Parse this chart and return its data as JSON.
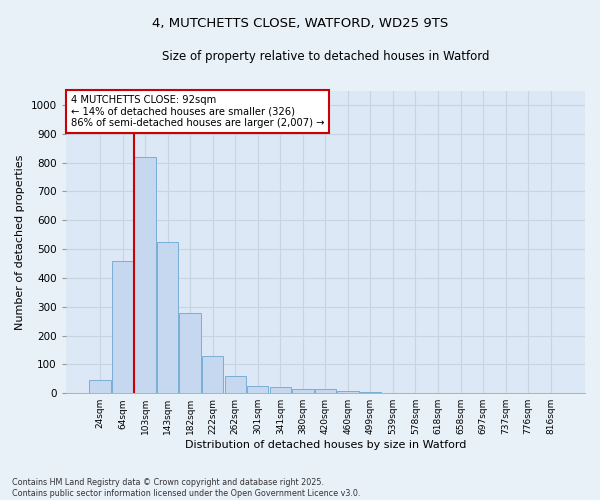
{
  "title1": "4, MUTCHETTS CLOSE, WATFORD, WD25 9TS",
  "title2": "Size of property relative to detached houses in Watford",
  "xlabel": "Distribution of detached houses by size in Watford",
  "ylabel": "Number of detached properties",
  "categories": [
    "24sqm",
    "64sqm",
    "103sqm",
    "143sqm",
    "182sqm",
    "222sqm",
    "262sqm",
    "301sqm",
    "341sqm",
    "380sqm",
    "420sqm",
    "460sqm",
    "499sqm",
    "539sqm",
    "578sqm",
    "618sqm",
    "658sqm",
    "697sqm",
    "737sqm",
    "776sqm",
    "816sqm"
  ],
  "values": [
    45,
    460,
    820,
    525,
    280,
    130,
    60,
    25,
    20,
    13,
    13,
    7,
    5,
    2,
    1,
    1,
    0,
    0,
    0,
    0,
    0
  ],
  "bar_color": "#c5d8f0",
  "bar_edge_color": "#7aaed6",
  "annotation_title": "4 MUTCHETTS CLOSE: 92sqm",
  "annotation_line1": "← 14% of detached houses are smaller (326)",
  "annotation_line2": "86% of semi-detached houses are larger (2,007) →",
  "annotation_box_color": "#ffffff",
  "annotation_box_edge": "#cc0000",
  "vline_color": "#cc0000",
  "ylim": [
    0,
    1050
  ],
  "yticks": [
    0,
    100,
    200,
    300,
    400,
    500,
    600,
    700,
    800,
    900,
    1000
  ],
  "grid_color": "#c8d4e0",
  "bg_color": "#dce8f5",
  "fig_bg_color": "#e8f0f8",
  "footnote1": "Contains HM Land Registry data © Crown copyright and database right 2025.",
  "footnote2": "Contains public sector information licensed under the Open Government Licence v3.0."
}
